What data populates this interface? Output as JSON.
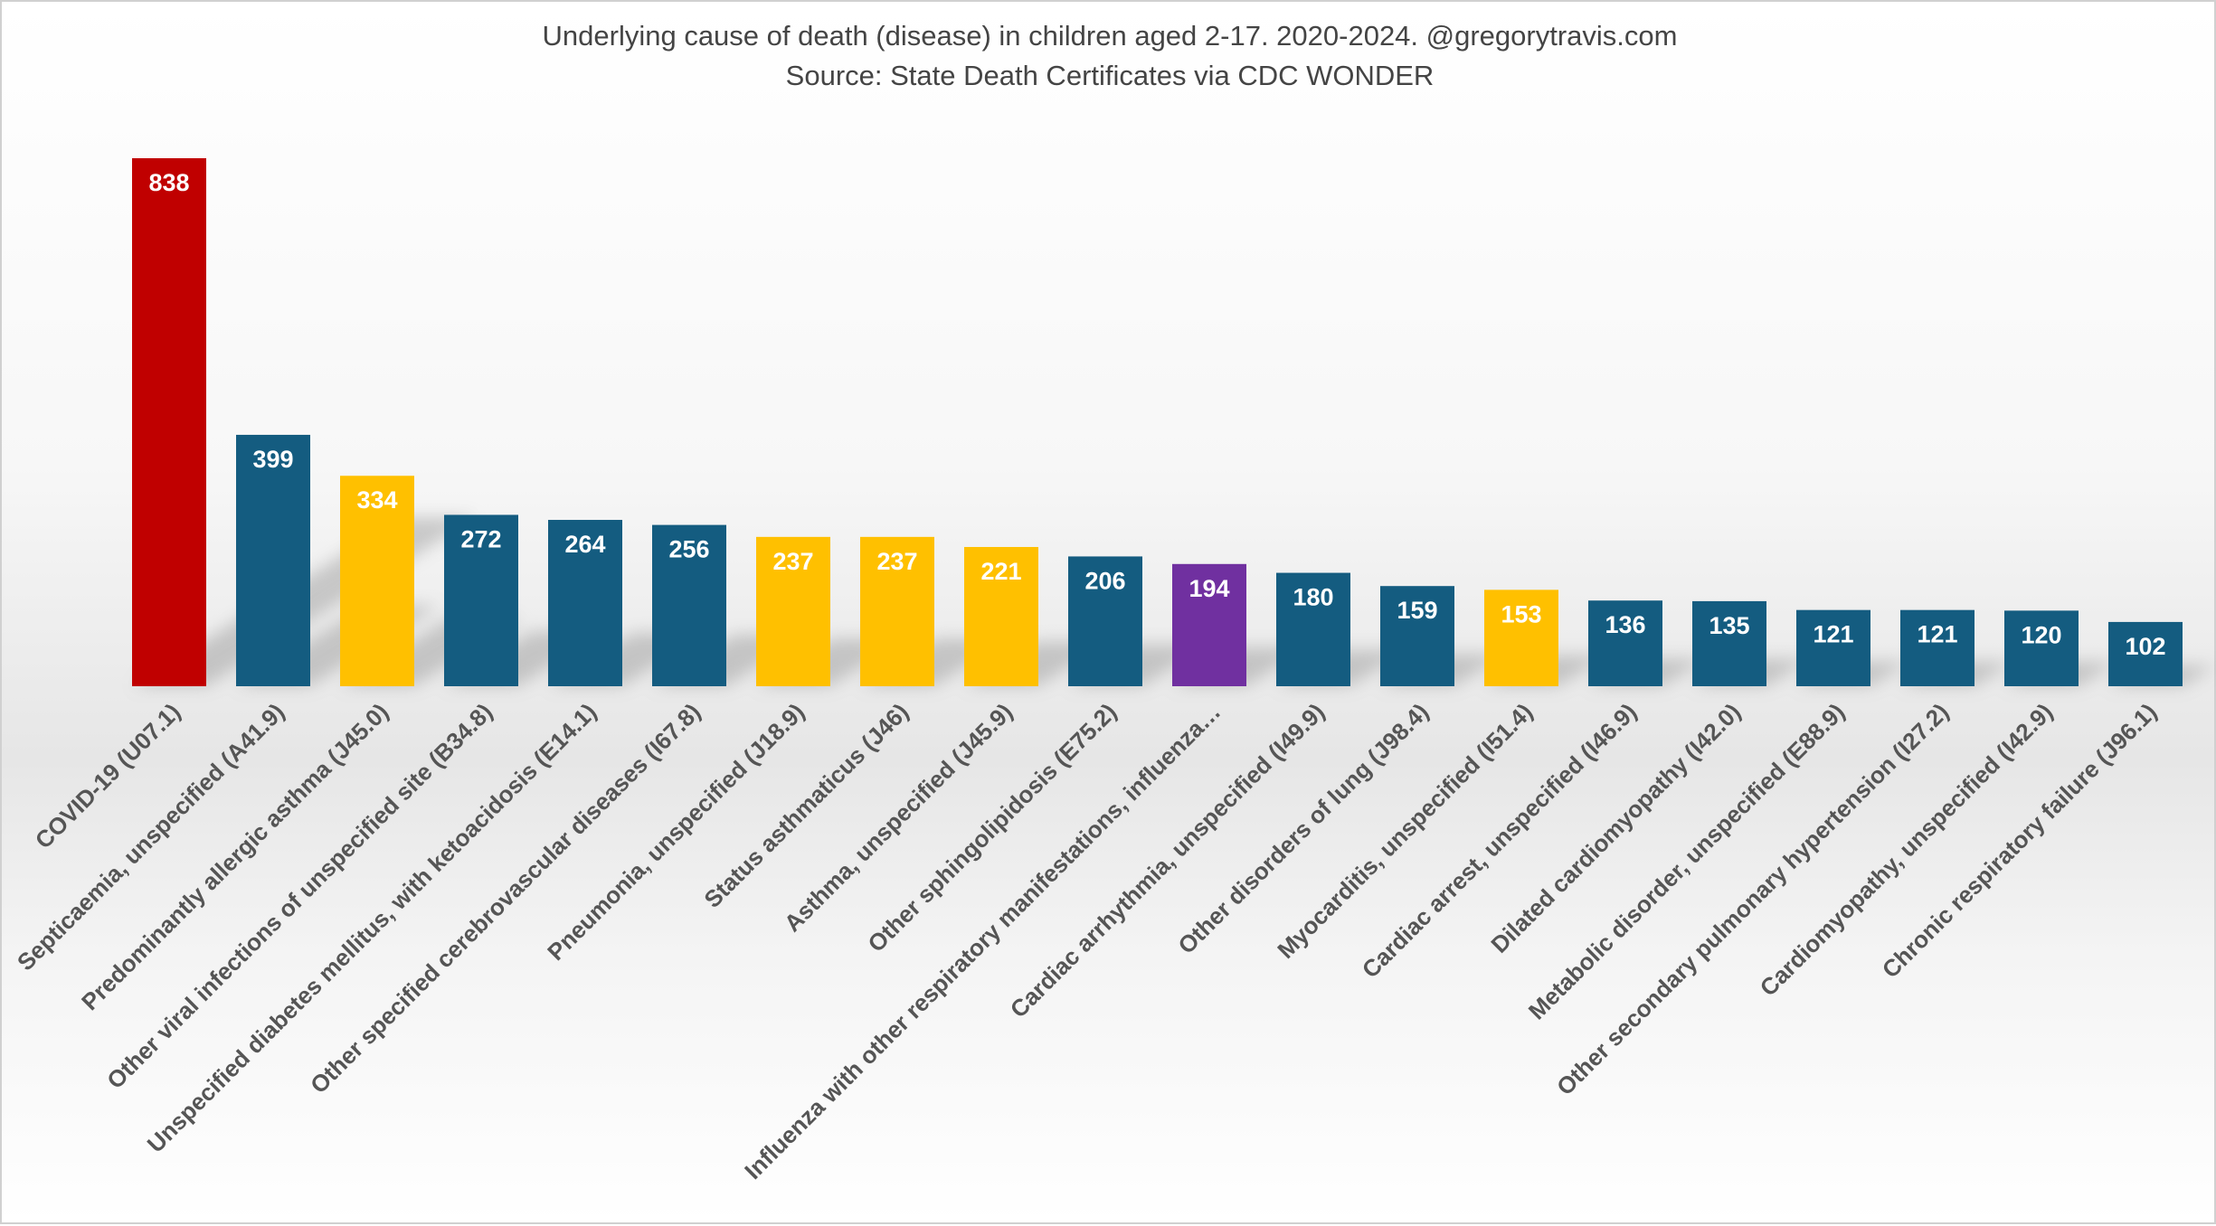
{
  "chart_data": {
    "type": "bar",
    "title": "Underlying cause of death (disease) in children aged 2-17.  2020-2024.  @gregorytravis.com",
    "subtitle": "Source: State Death Certificates via CDC WONDER",
    "xlabel": "",
    "ylabel": "",
    "ylim": [
      0,
      900
    ],
    "grid": false,
    "legend": "none",
    "categories": [
      "COVID-19 (U07.1)",
      "Septicaemia, unspecified (A41.9)",
      "Predominantly allergic asthma (J45.0)",
      "Other viral infections of unspecified site (B34.8)",
      "Unspecified diabetes mellitus, with ketoacidosis (E14.1)",
      "Other specified cerebrovascular diseases (I67.8)",
      "Pneumonia, unspecified (J18.9)",
      "Status asthmaticus (J46)",
      "Asthma, unspecified (J45.9)",
      "Other sphingolipidosis (E75.2)",
      "Influenza with other respiratory manifestations, influenza…",
      "Cardiac arrhythmia, unspecified (I49.9)",
      "Other disorders of lung (J98.4)",
      "Myocarditis, unspecified (I51.4)",
      "Cardiac arrest, unspecified (I46.9)",
      "Dilated cardiomyopathy (I42.0)",
      "Metabolic disorder, unspecified (E88.9)",
      "Other secondary pulmonary hypertension (I27.2)",
      "Cardiomyopathy, unspecified (I42.9)",
      "Chronic respiratory failure (J96.1)"
    ],
    "values": [
      838,
      399,
      334,
      272,
      264,
      256,
      237,
      237,
      221,
      206,
      194,
      180,
      159,
      153,
      136,
      135,
      121,
      121,
      120,
      102
    ],
    "colors": [
      "#c00000",
      "#145c80",
      "#ffc000",
      "#145c80",
      "#145c80",
      "#145c80",
      "#ffc000",
      "#ffc000",
      "#ffc000",
      "#145c80",
      "#7030a0",
      "#145c80",
      "#145c80",
      "#ffc000",
      "#145c80",
      "#145c80",
      "#145c80",
      "#145c80",
      "#145c80",
      "#145c80"
    ],
    "data_label_color": "#ffffff",
    "axis_label_color": "#555555"
  }
}
